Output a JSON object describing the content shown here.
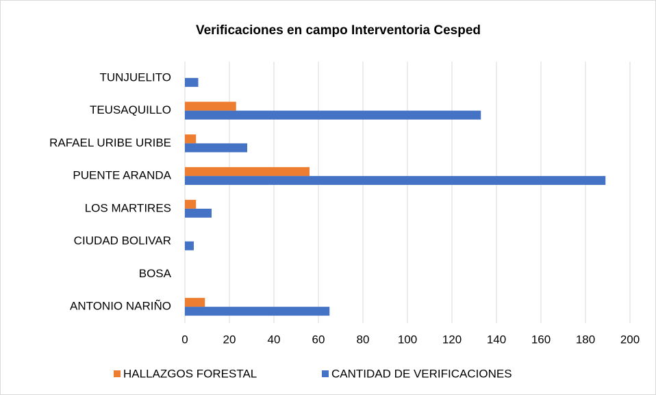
{
  "chart_data": {
    "type": "bar",
    "orientation": "horizontal",
    "title": "Verificaciones en campo Interventoria Cesped",
    "categories": [
      "TUNJUELITO",
      "TEUSAQUILLO",
      "RAFAEL URIBE URIBE",
      "PUENTE ARANDA",
      "LOS MARTIRES",
      "CIUDAD BOLIVAR",
      "BOSA",
      "ANTONIO NARIÑO"
    ],
    "series": [
      {
        "name": "HALLAZGOS FORESTAL",
        "color": "#ed7d31",
        "values": [
          0,
          23,
          5,
          56,
          5,
          0,
          0,
          9
        ]
      },
      {
        "name": "CANTIDAD DE VERIFICACIONES",
        "color": "#4472c4",
        "values": [
          6,
          133,
          28,
          189,
          12,
          4,
          0,
          65
        ]
      }
    ],
    "xlim": [
      0,
      200
    ],
    "xticks": [
      0,
      20,
      40,
      60,
      80,
      100,
      120,
      140,
      160,
      180,
      200
    ],
    "grid": true,
    "legend": "bottom"
  }
}
